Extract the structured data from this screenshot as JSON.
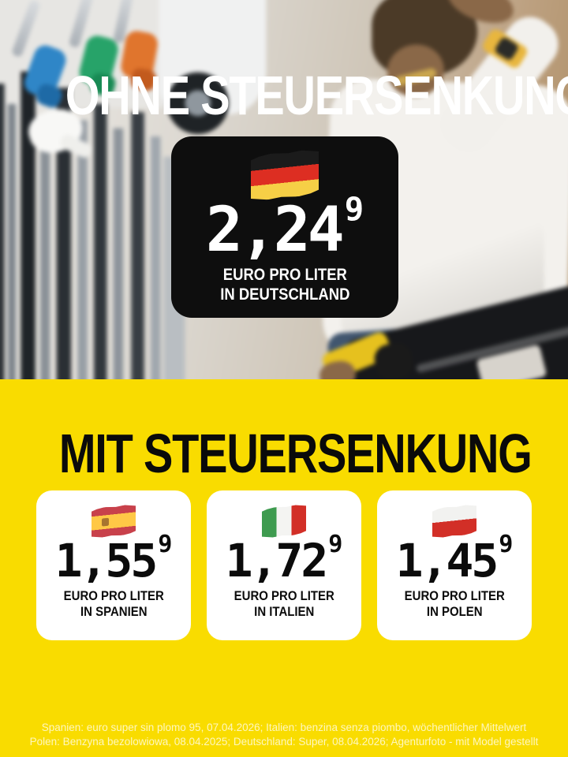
{
  "top": {
    "headline": "OHNE STEUERSENKUNG",
    "card": {
      "flag": "germany",
      "price": "2,24",
      "price_superscript": "9",
      "label_line1": "EURO PRO LITER",
      "label_line2": "IN DEUTSCHLAND"
    }
  },
  "bottom": {
    "headline": "MIT STEUERSENKUNG",
    "cards": [
      {
        "flag": "spain",
        "price": "1,55",
        "price_superscript": "9",
        "label_line1": "EURO PRO LITER",
        "label_line2": "IN SPANIEN"
      },
      {
        "flag": "italy",
        "price": "1,72",
        "price_superscript": "9",
        "label_line1": "EURO PRO LITER",
        "label_line2": "IN ITALIEN"
      },
      {
        "flag": "poland",
        "price": "1,45",
        "price_superscript": "9",
        "label_line1": "EURO PRO LITER",
        "label_line2": "IN POLEN"
      }
    ]
  },
  "footer": {
    "line1": "Spanien: euro super sin plomo 95, 07.04.2026; Italien: benzina senza piombo, wöchentlicher Mittelwert",
    "line2": "Polen: Benzyna bezolowiowa, 08.04.2025; Deutschland: Super, 08.04.2026; Agenturfoto - mit Model gestellt"
  },
  "flags": {
    "germany": {
      "name": "germany-flag",
      "orientation": "horizontal",
      "colors": [
        "#1B1B1B",
        "#DD2E22",
        "#F6CF46"
      ]
    },
    "spain": {
      "name": "spain-flag",
      "orientation": "horizontal",
      "colors": [
        "#C8414B",
        "#FFC846",
        "#C8414B"
      ],
      "ratios": [
        0.27,
        0.46,
        0.27
      ],
      "emblem_color": "#A8742F"
    },
    "italy": {
      "name": "italy-flag",
      "orientation": "vertical",
      "colors": [
        "#3E9B4F",
        "#F4F4F2",
        "#D22F27"
      ]
    },
    "poland": {
      "name": "poland-flag",
      "orientation": "horizontal",
      "colors": [
        "#F2F2F0",
        "#D22F27"
      ],
      "ratios": [
        0.48,
        0.52
      ]
    }
  },
  "colors": {
    "background_yellow": "#F9DC00",
    "card_black": "#0E0E0E",
    "card_white": "#FFFFFF",
    "headline_white": "#FFFFFF",
    "headline_black": "#0A0A0A",
    "footer_text": "#FFFCE9"
  }
}
